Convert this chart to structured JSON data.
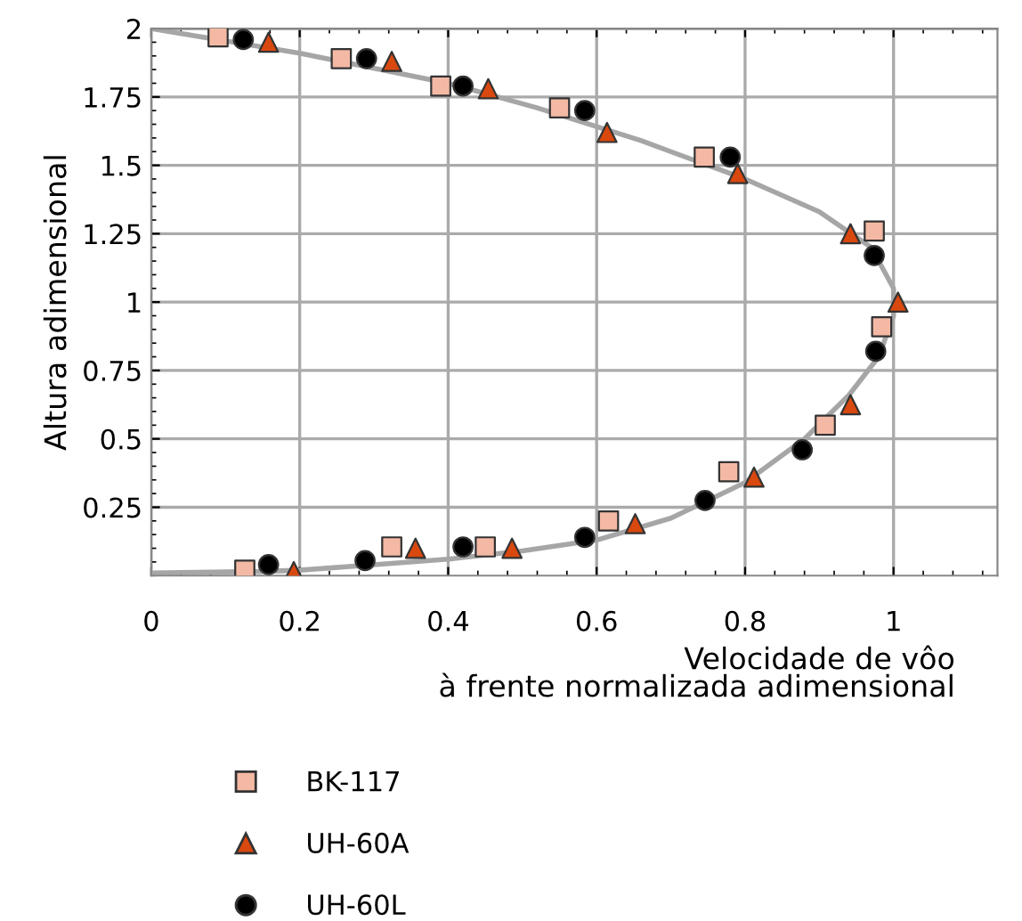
{
  "chart_data": {
    "type": "scatter",
    "xlabel": "Velocidade de vôo\nà frente normalizada adimensional",
    "ylabel": "Altura adimensional",
    "xlim": [
      0,
      1.14
    ],
    "xticks": [
      0,
      0.2,
      0.4,
      0.6,
      0.8,
      1
    ],
    "ylim": [
      0,
      2
    ],
    "yticks": [
      0.25,
      0.5,
      0.75,
      1,
      1.25,
      1.5,
      1.75,
      2
    ],
    "grid": true,
    "legend": "bottom",
    "series": [
      {
        "type": "line",
        "color": "#a6a6a6",
        "marker": "none",
        "line_style": "solid",
        "x": [
          0,
          0.2,
          0.4,
          0.52,
          0.66,
          0.8,
          0.9,
          0.97,
          1.0,
          1.0,
          0.98,
          0.94,
          0.88,
          0.8,
          0.7,
          0.6,
          0.5,
          0.4,
          0.3,
          0.2,
          0.15,
          0
        ],
        "values": [
          2,
          1.91,
          1.8,
          1.71,
          1.59,
          1.45,
          1.33,
          1.2,
          1.05,
          0.95,
          0.8,
          0.66,
          0.5,
          0.34,
          0.21,
          0.13,
          0.09,
          0.06,
          0.04,
          0.02,
          0.015,
          0.01
        ]
      },
      {
        "name": "BK-117",
        "color": "#f4b9a4",
        "marker": "square",
        "x": [
          0.09,
          0.256,
          0.39,
          0.55,
          0.745,
          0.974,
          0.984,
          0.908,
          0.778,
          0.616,
          0.45,
          0.324,
          0.126
        ],
        "values": [
          1.97,
          1.89,
          1.79,
          1.71,
          1.53,
          1.26,
          0.91,
          0.55,
          0.38,
          0.2,
          0.105,
          0.105,
          0.02
        ]
      },
      {
        "name": "UH-60A",
        "color": "#d9480f",
        "marker": "triangle",
        "x": [
          0.158,
          0.324,
          0.454,
          0.614,
          0.79,
          0.942,
          1.006,
          0.942,
          0.812,
          0.652,
          0.486,
          0.356,
          0.192
        ],
        "values": [
          1.95,
          1.88,
          1.78,
          1.62,
          1.47,
          1.25,
          1.0,
          0.625,
          0.36,
          0.19,
          0.1,
          0.1,
          0.015
        ]
      },
      {
        "name": "UH-60L",
        "color": "#000000",
        "marker": "circle",
        "x": [
          0.124,
          0.29,
          0.42,
          0.584,
          0.78,
          0.974,
          0.976,
          0.877,
          0.746,
          0.584,
          0.42,
          0.288,
          0.158
        ],
        "values": [
          1.96,
          1.89,
          1.79,
          1.7,
          1.53,
          1.17,
          0.82,
          0.46,
          0.275,
          0.14,
          0.105,
          0.055,
          0.04
        ]
      }
    ]
  }
}
